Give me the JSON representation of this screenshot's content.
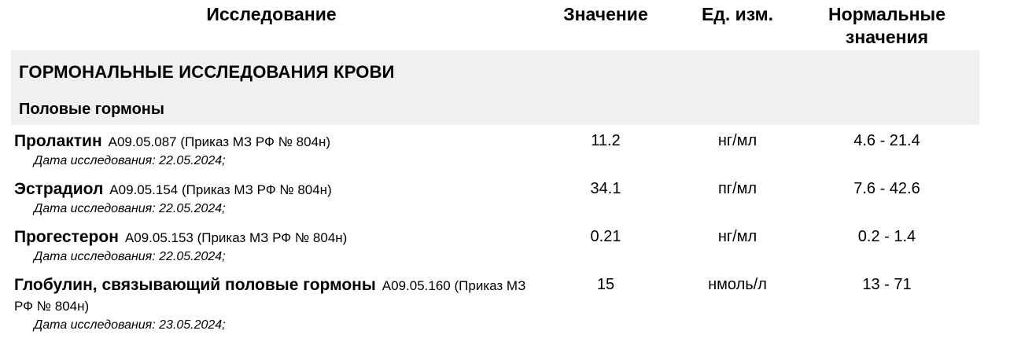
{
  "report": {
    "columns": {
      "study": "Исследование",
      "value": "Значение",
      "unit": "Ед. изм.",
      "normal": "Нормальные значения"
    },
    "section_title": "ГОРМОНАЛЬНЫЕ ИССЛЕДОВАНИЯ КРОВИ",
    "subsection_title": "Половые гормоны",
    "rows": [
      {
        "name": "Пролактин",
        "code": "A09.05.087 (Приказ МЗ РФ № 804н)",
        "date_note": "Дата исследования: 22.05.2024;",
        "value": "11.2",
        "unit": "нг/мл",
        "normal": "4.6 - 21.4"
      },
      {
        "name": "Эстрадиол",
        "code": "A09.05.154 (Приказ МЗ РФ № 804н)",
        "date_note": "Дата исследования: 22.05.2024;",
        "value": "34.1",
        "unit": "пг/мл",
        "normal": "7.6 - 42.6"
      },
      {
        "name": "Прогестерон",
        "code": "A09.05.153 (Приказ МЗ РФ № 804н)",
        "date_note": "Дата исследования: 22.05.2024;",
        "value": "0.21",
        "unit": "нг/мл",
        "normal": "0.2 - 1.4"
      },
      {
        "name": "Глобулин, связывающий половые гормоны",
        "code": "A09.05.160 (Приказ МЗ РФ № 804н)",
        "date_note": "Дата исследования: 23.05.2024;",
        "value": "15",
        "unit": "нмоль/л",
        "normal": "13 - 71"
      }
    ],
    "colors": {
      "section_bg": "#f0f0f0",
      "text": "#000000"
    }
  }
}
